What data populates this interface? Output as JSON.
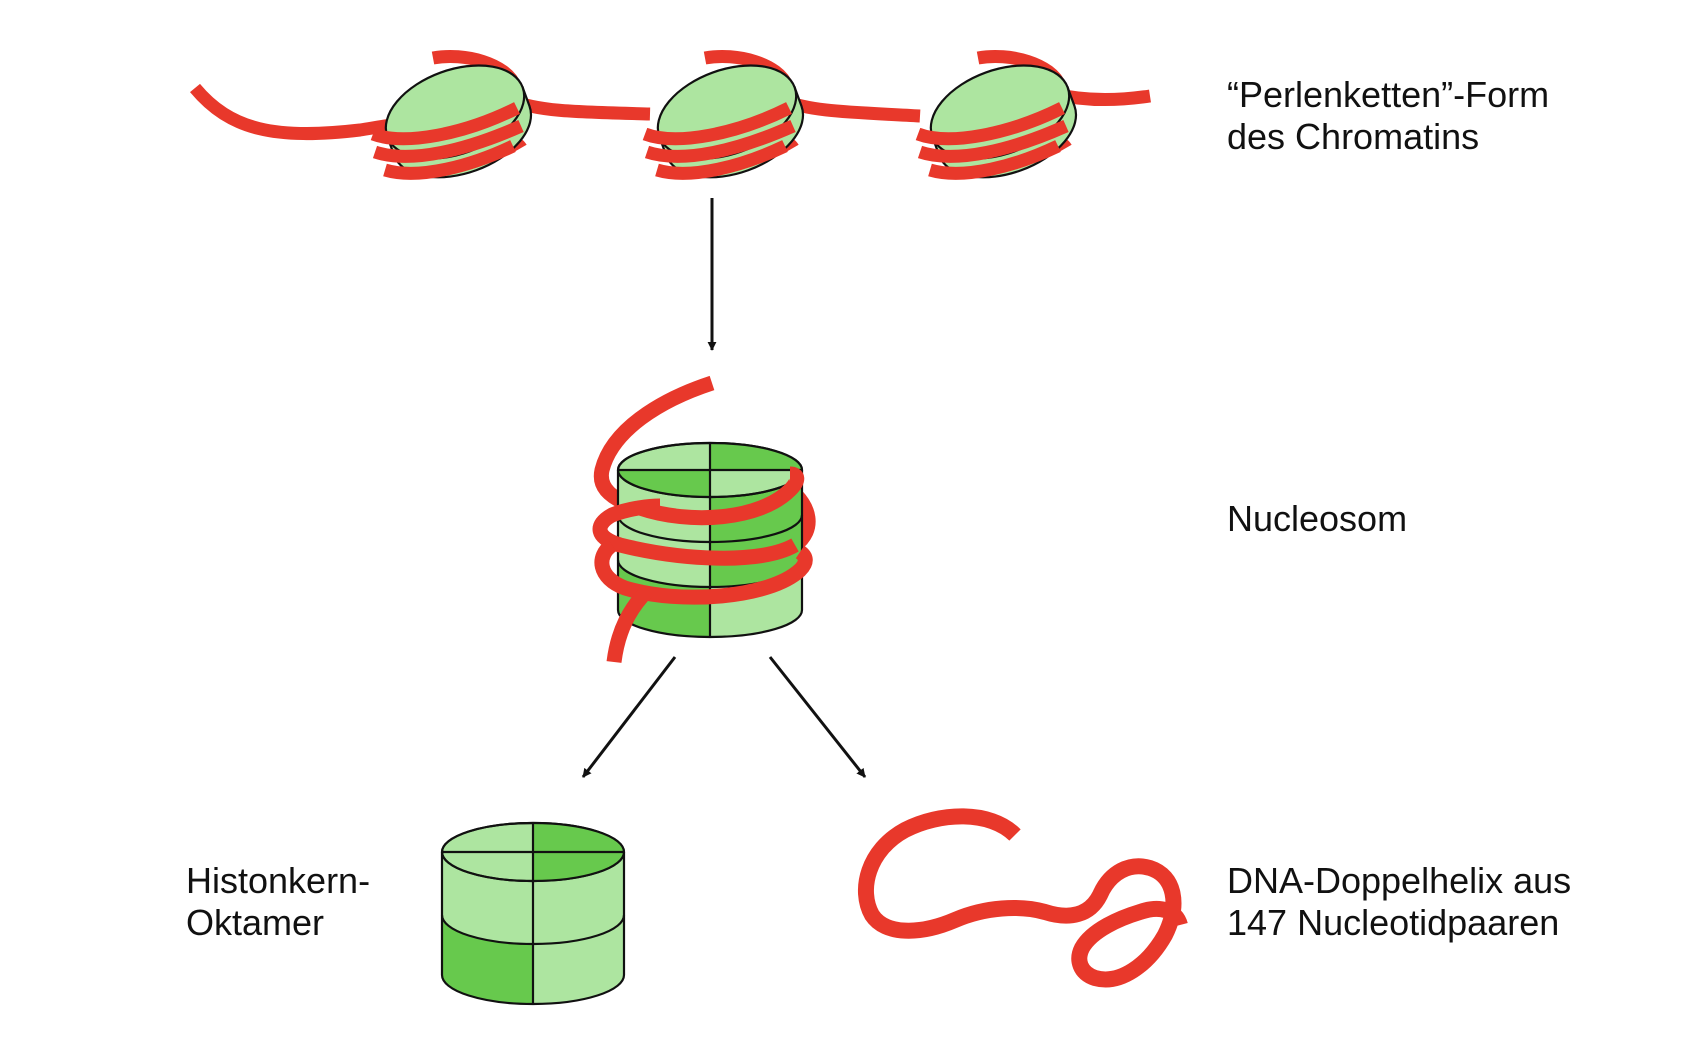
{
  "labels": {
    "chromatin_line1": "“Perlenketten”-Form",
    "chromatin_line2": "des Chromatins",
    "nucleosome": "Nucleosom",
    "histone_line1": "Histonkern-",
    "histone_line2": "Oktamer",
    "dna_line1": "DNA-Doppelhelix aus",
    "dna_line2": "147 Nucleotidpaaren"
  },
  "colors": {
    "dna_red": "#e8382b",
    "histone_light": "#ade5a0",
    "histone_dark": "#67c94d",
    "outline": "#111111",
    "arrow": "#111111"
  }
}
